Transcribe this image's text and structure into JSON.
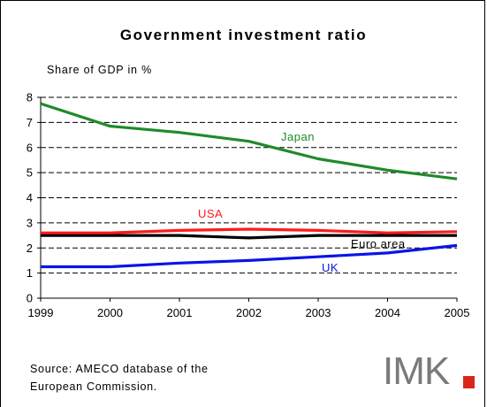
{
  "chart_data": {
    "type": "line",
    "title": "Government investment ratio",
    "ylabel": "Share of GDP in %",
    "xlabel": "",
    "x": [
      "1999",
      "2000",
      "2001",
      "2002",
      "2003",
      "2004",
      "2005"
    ],
    "ylim": [
      0,
      8
    ],
    "yticks": [
      "0",
      "1",
      "2",
      "3",
      "4",
      "5",
      "6",
      "7",
      "8"
    ],
    "grid": "horizontal dashed",
    "series": [
      {
        "name": "Japan",
        "color": "#1f8a2a",
        "values": [
          7.75,
          6.85,
          6.6,
          6.25,
          5.55,
          5.1,
          4.75
        ]
      },
      {
        "name": "USA",
        "color": "#ff1a1a",
        "values": [
          2.6,
          2.6,
          2.7,
          2.75,
          2.7,
          2.6,
          2.65
        ]
      },
      {
        "name": "Euro area",
        "color": "#000000",
        "values": [
          2.5,
          2.5,
          2.5,
          2.4,
          2.5,
          2.5,
          2.5
        ]
      },
      {
        "name": "UK",
        "color": "#0a14e6",
        "values": [
          1.25,
          1.25,
          1.4,
          1.5,
          1.65,
          1.8,
          2.1
        ]
      }
    ]
  },
  "source": {
    "line1": "Source: AMECO database of the",
    "line2": "European Commission."
  },
  "logo": {
    "text": "IMK",
    "accent_color": "#d9261c"
  }
}
